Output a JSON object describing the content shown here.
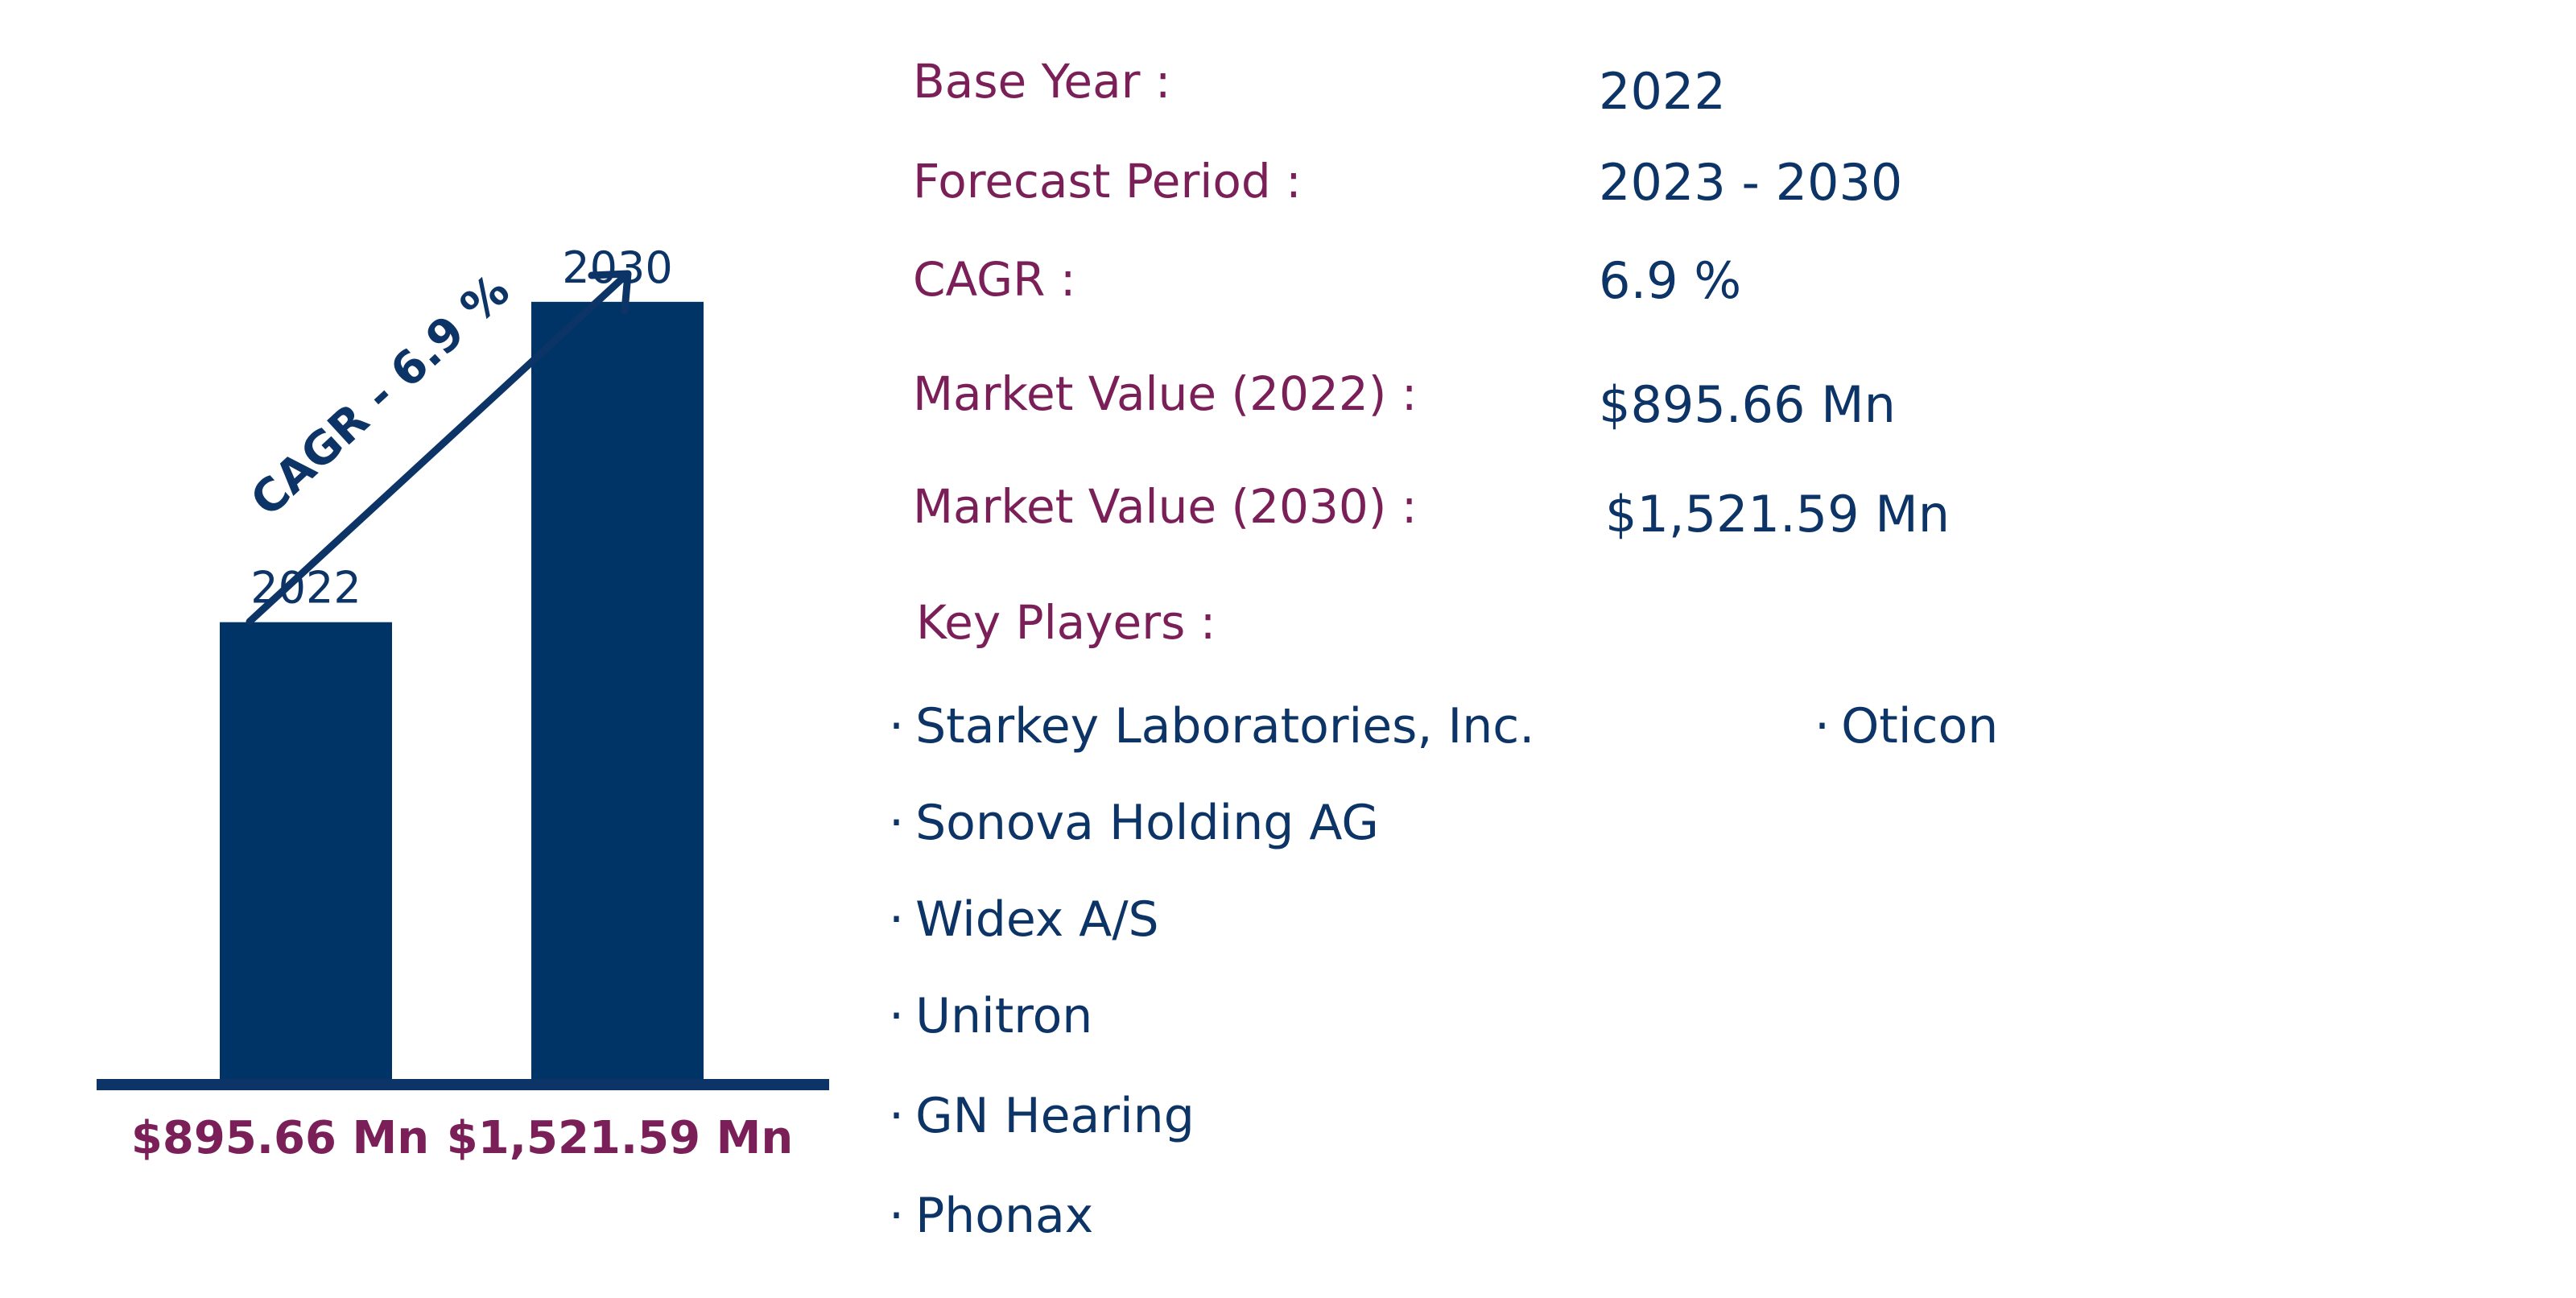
{
  "colors": {
    "navy": "#0d3466",
    "bar": "#003366",
    "maroon": "#7a1f57"
  },
  "chart_data": {
    "type": "bar",
    "categories": [
      "2022",
      "2030"
    ],
    "values": [
      895.66,
      1521.59
    ],
    "value_labels": [
      "$895.66 Mn",
      "$1,521.59 Mn"
    ],
    "arrow_label": "CAGR - 6.9 %",
    "title": "",
    "xlabel": "",
    "ylabel": "",
    "ylim": [
      0,
      1600
    ]
  },
  "info": {
    "base_year_label": "Base Year :",
    "base_year_value": "2022",
    "forecast_label": "Forecast Period :",
    "forecast_value": "2023 - 2030",
    "cagr_label": "CAGR :",
    "cagr_value": "6.9 %",
    "mv2022_label": "Market Value (2022) :",
    "mv2022_value": "$895.66 Mn",
    "mv2030_label": "Market Value (2030) :",
    "mv2030_value": "$1,521.59 Mn",
    "key_players_label": "Key Players :"
  },
  "players": {
    "bullet": "·",
    "left": [
      "Starkey Laboratories, Inc.",
      "Sonova Holding AG",
      "Widex A/S",
      "Unitron",
      "GN Hearing",
      "Phonax"
    ],
    "right": [
      "Oticon"
    ]
  }
}
